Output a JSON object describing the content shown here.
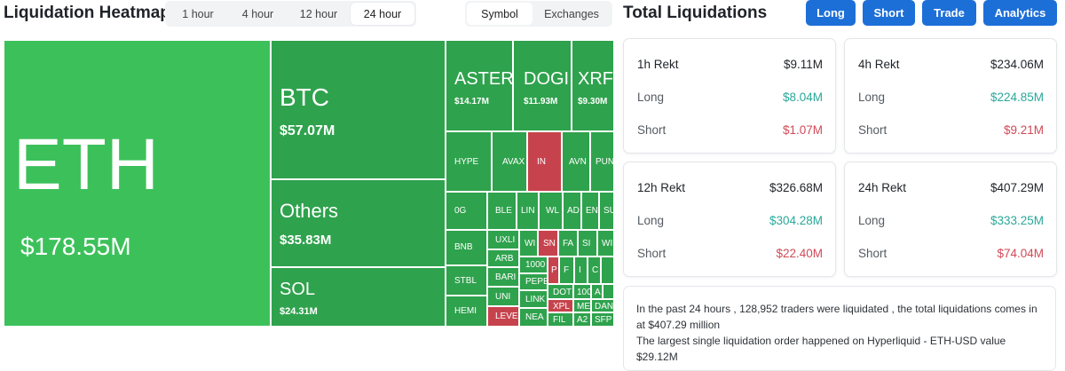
{
  "heatmap": {
    "title": "Liquidation Heatmap",
    "timeframes": [
      "1 hour",
      "4 hour",
      "12 hour",
      "24 hour"
    ],
    "active_timeframe": "24 hour",
    "views": [
      "Symbol",
      "Exchanges"
    ],
    "active_view": "Symbol",
    "tiles": {
      "eth": {
        "symbol": "ETH",
        "value": "$178.55M"
      },
      "btc": {
        "symbol": "BTC",
        "value": "$57.07M"
      },
      "others": {
        "symbol": "Others",
        "value": "$35.83M"
      },
      "sol": {
        "symbol": "SOL",
        "value": "$24.31M"
      },
      "aster": {
        "symbol": "ASTER",
        "value": "$14.17M"
      },
      "doge": {
        "symbol": "DOGI",
        "value": "$11.93M"
      },
      "xrp": {
        "symbol": "XRF",
        "value": "$9.30M"
      },
      "hype": {
        "symbol": "HYPE"
      },
      "avax": {
        "symbol": "AVAX"
      },
      "in": {
        "symbol": "IN"
      },
      "avn": {
        "symbol": "AVN"
      },
      "pun": {
        "symbol": "PUN"
      },
      "og": {
        "symbol": "0G"
      },
      "ble": {
        "symbol": "BLE"
      },
      "lin": {
        "symbol": "LIN"
      },
      "wl": {
        "symbol": "WL"
      },
      "ad": {
        "symbol": "AD"
      },
      "en": {
        "symbol": "EN"
      },
      "su": {
        "symbol": "SU"
      },
      "bnb": {
        "symbol": "BNB"
      },
      "uxli": {
        "symbol": "UXLI"
      },
      "wi": {
        "symbol": "WI"
      },
      "sn": {
        "symbol": "SN"
      },
      "fa": {
        "symbol": "FA"
      },
      "si": {
        "symbol": "SI"
      },
      "w2": {
        "symbol": "WI"
      },
      "arb": {
        "symbol": "ARB"
      },
      "k1000": {
        "symbol": "1000"
      },
      "p": {
        "symbol": "P"
      },
      "f": {
        "symbol": "F"
      },
      "i": {
        "symbol": "I"
      },
      "c": {
        "symbol": "C"
      },
      "stbl": {
        "symbol": "STBL"
      },
      "bare": {
        "symbol": "BARI"
      },
      "pepe": {
        "symbol": "PEPE"
      },
      "uni": {
        "symbol": "UNI"
      },
      "dot": {
        "symbol": "DOT"
      },
      "k100": {
        "symbol": "100"
      },
      "a": {
        "symbol": "A"
      },
      "link": {
        "symbol": "LINK"
      },
      "xpl": {
        "symbol": "XPL"
      },
      "me": {
        "symbol": "ME"
      },
      "dan": {
        "symbol": "DAN"
      },
      "hemi": {
        "symbol": "HEMI"
      },
      "leve": {
        "symbol": "LEVE"
      },
      "nea": {
        "symbol": "NEA"
      },
      "fil": {
        "symbol": "FIL"
      },
      "a2": {
        "symbol": "A2"
      },
      "sfp": {
        "symbol": "SFP"
      }
    }
  },
  "total": {
    "title": "Total Liquidations",
    "buttons": [
      "Long",
      "Short",
      "Trade",
      "Analytics"
    ],
    "long_label": "Long",
    "short_label": "Short",
    "cards": [
      {
        "label": "1h Rekt",
        "total": "$9.11M",
        "long": "$8.04M",
        "short": "$1.07M"
      },
      {
        "label": "4h Rekt",
        "total": "$234.06M",
        "long": "$224.85M",
        "short": "$9.21M"
      },
      {
        "label": "12h Rekt",
        "total": "$326.68M",
        "long": "$304.28M",
        "short": "$22.40M"
      },
      {
        "label": "24h Rekt",
        "total": "$407.29M",
        "long": "$333.25M",
        "short": "$74.04M"
      }
    ],
    "summary_line1": "In the past 24 hours , 128,952 traders were liquidated , the total liquidations comes in at $407.29 million",
    "summary_line2": "The largest single liquidation order happened on Hyperliquid - ETH-USD value $29.12M"
  },
  "colors": {
    "green_large": "#3cc15a",
    "green": "#2fa24d",
    "red": "#c6434d",
    "button_blue": "#1d6fd8",
    "long_teal": "#2aa89a",
    "short_red": "#d04a57"
  }
}
